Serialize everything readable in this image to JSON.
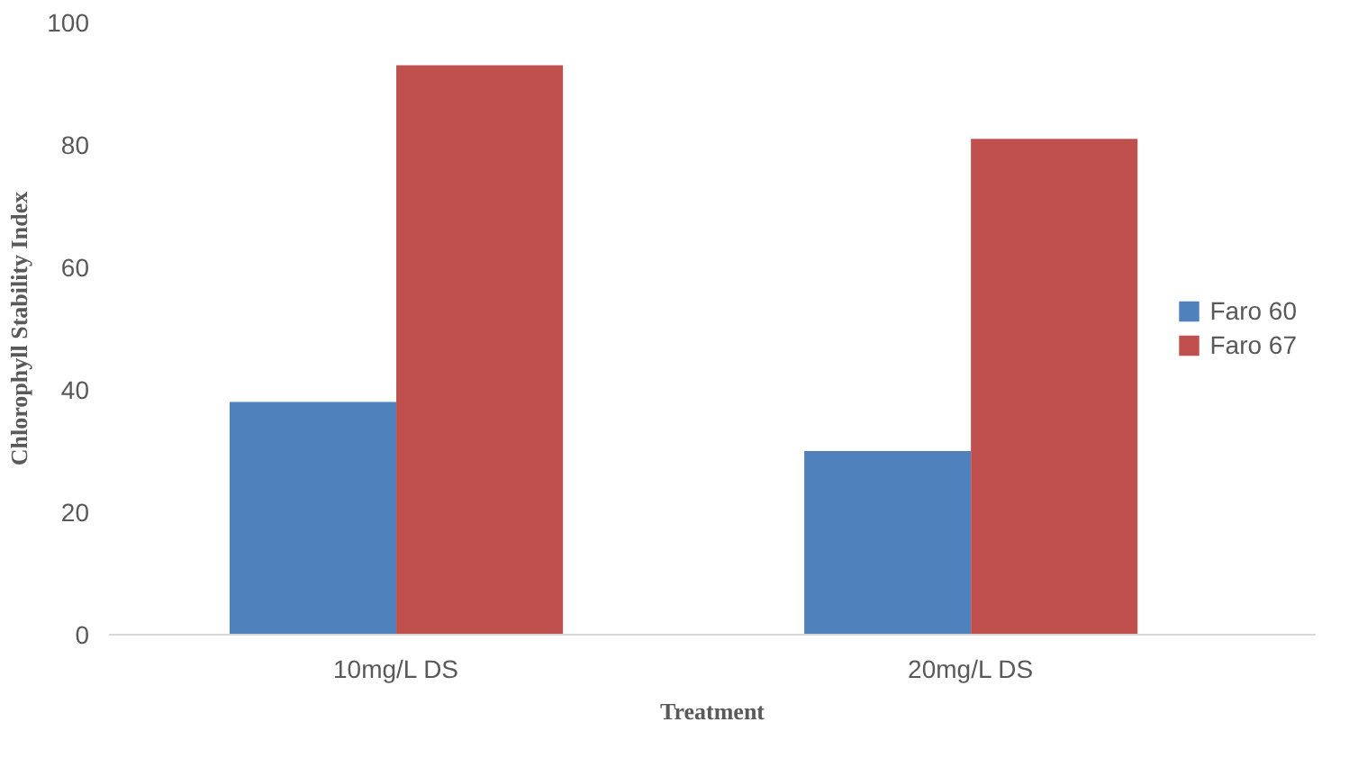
{
  "chart_data": {
    "type": "bar",
    "xlabel": "Treatment",
    "ylabel": "Chlorophyll Stability Index",
    "categories": [
      "10mg/L DS",
      "20mg/L DS"
    ],
    "series": [
      {
        "name": "Faro 60",
        "color": "#4f81bd",
        "values": [
          38,
          30
        ]
      },
      {
        "name": "Faro 67",
        "color": "#c0504d",
        "values": [
          93,
          81
        ]
      }
    ],
    "ylim": [
      0,
      100
    ],
    "yticks": [
      0,
      20,
      40,
      60,
      80,
      100
    ],
    "grid": false,
    "legend": "right"
  }
}
